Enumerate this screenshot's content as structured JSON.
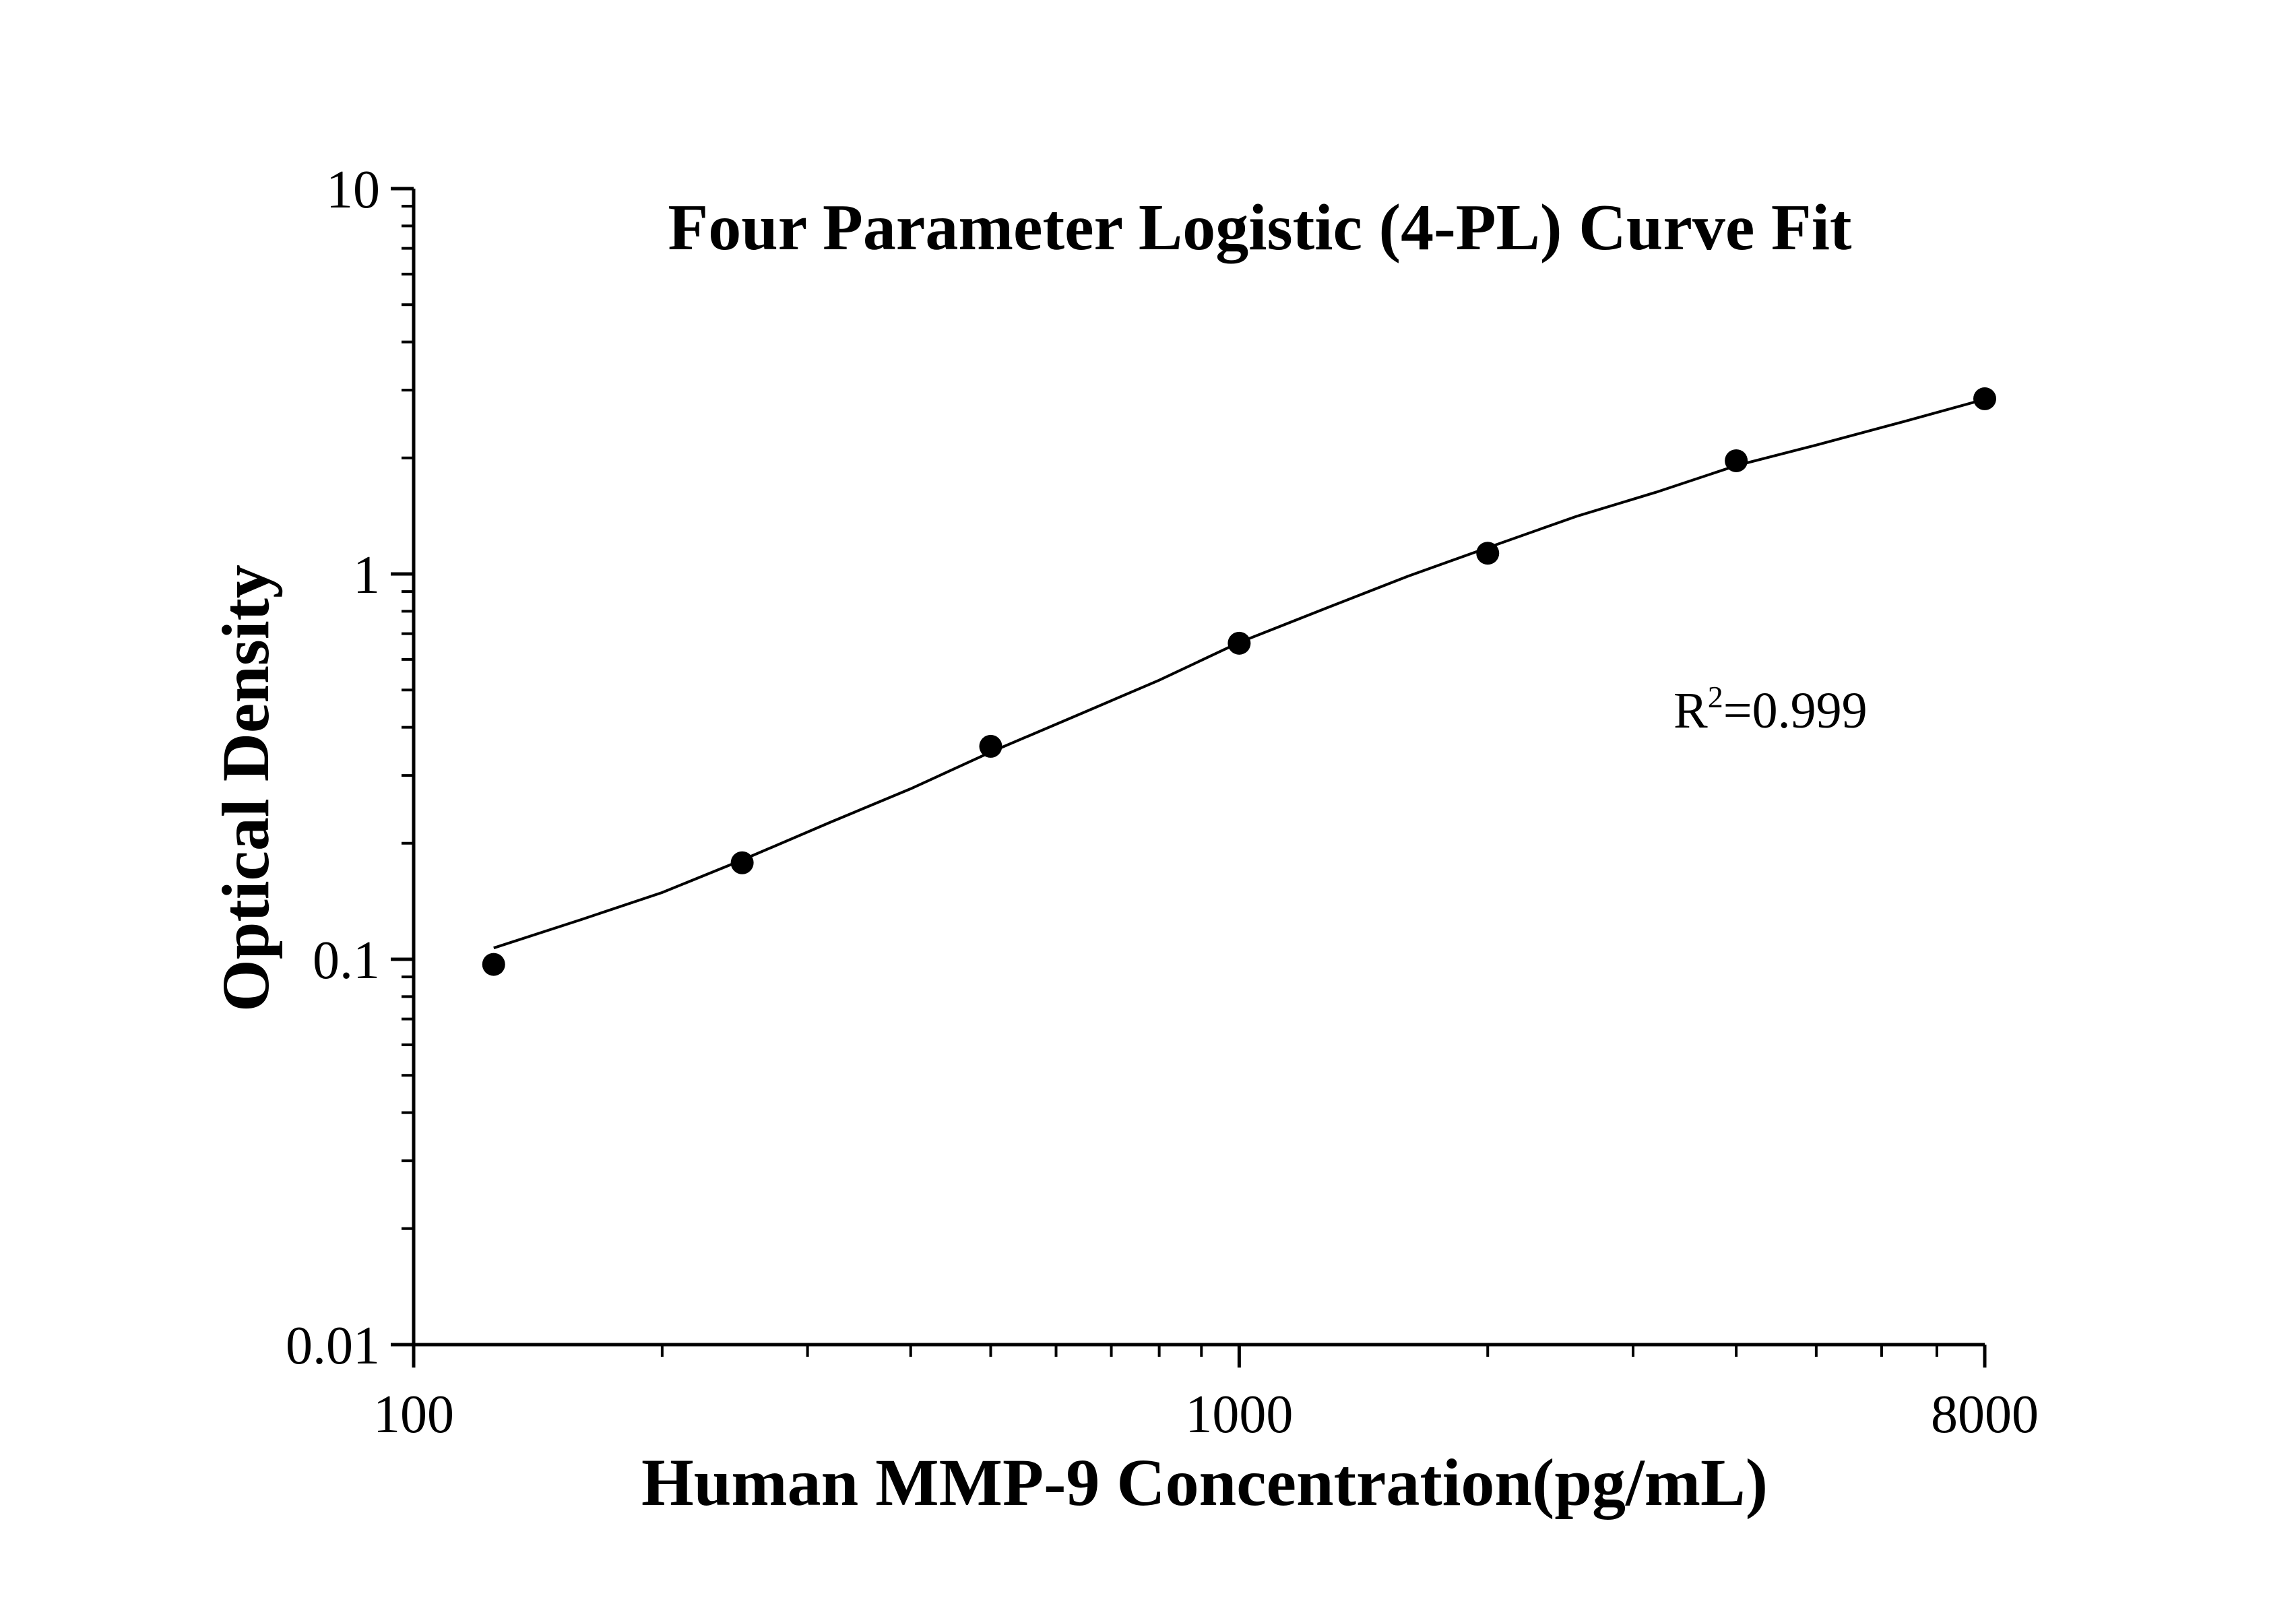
{
  "chart_data": {
    "type": "scatter",
    "title": "Four Parameter Logistic (4-PL) Curve Fit",
    "xlabel": "Human MMP-9 Concentration(pg/mL)",
    "ylabel": "Optical Density",
    "xscale": "log",
    "yscale": "log",
    "xlim": [
      100,
      8000
    ],
    "ylim": [
      0.01,
      10
    ],
    "x_ticks": [
      100,
      1000,
      8000
    ],
    "x_tick_labels": [
      "100",
      "1000",
      "8000"
    ],
    "y_ticks": [
      0.01,
      0.1,
      1,
      10
    ],
    "y_tick_labels": [
      "0.01",
      "0.1",
      "1",
      "10"
    ],
    "grid": false,
    "marker_color": "#000000",
    "line_color": "#000000",
    "series": [
      {
        "x": [
          125,
          250,
          500,
          1000,
          2000,
          4000,
          8000
        ],
        "y": [
          0.097,
          0.178,
          0.357,
          0.661,
          1.132,
          1.967,
          2.849
        ]
      }
    ],
    "fit_curve": {
      "x": [
        125,
        160,
        200,
        250,
        320,
        400,
        500,
        640,
        800,
        1000,
        1280,
        1600,
        2000,
        2560,
        3200,
        4000,
        5000,
        6400,
        8000
      ],
      "y": [
        0.107,
        0.127,
        0.149,
        0.181,
        0.227,
        0.277,
        0.345,
        0.432,
        0.53,
        0.664,
        0.818,
        0.986,
        1.17,
        1.41,
        1.63,
        1.91,
        2.16,
        2.49,
        2.84
      ]
    },
    "annotation": {
      "prefix": "R",
      "superscript": "2",
      "suffix": "=0.999"
    }
  }
}
